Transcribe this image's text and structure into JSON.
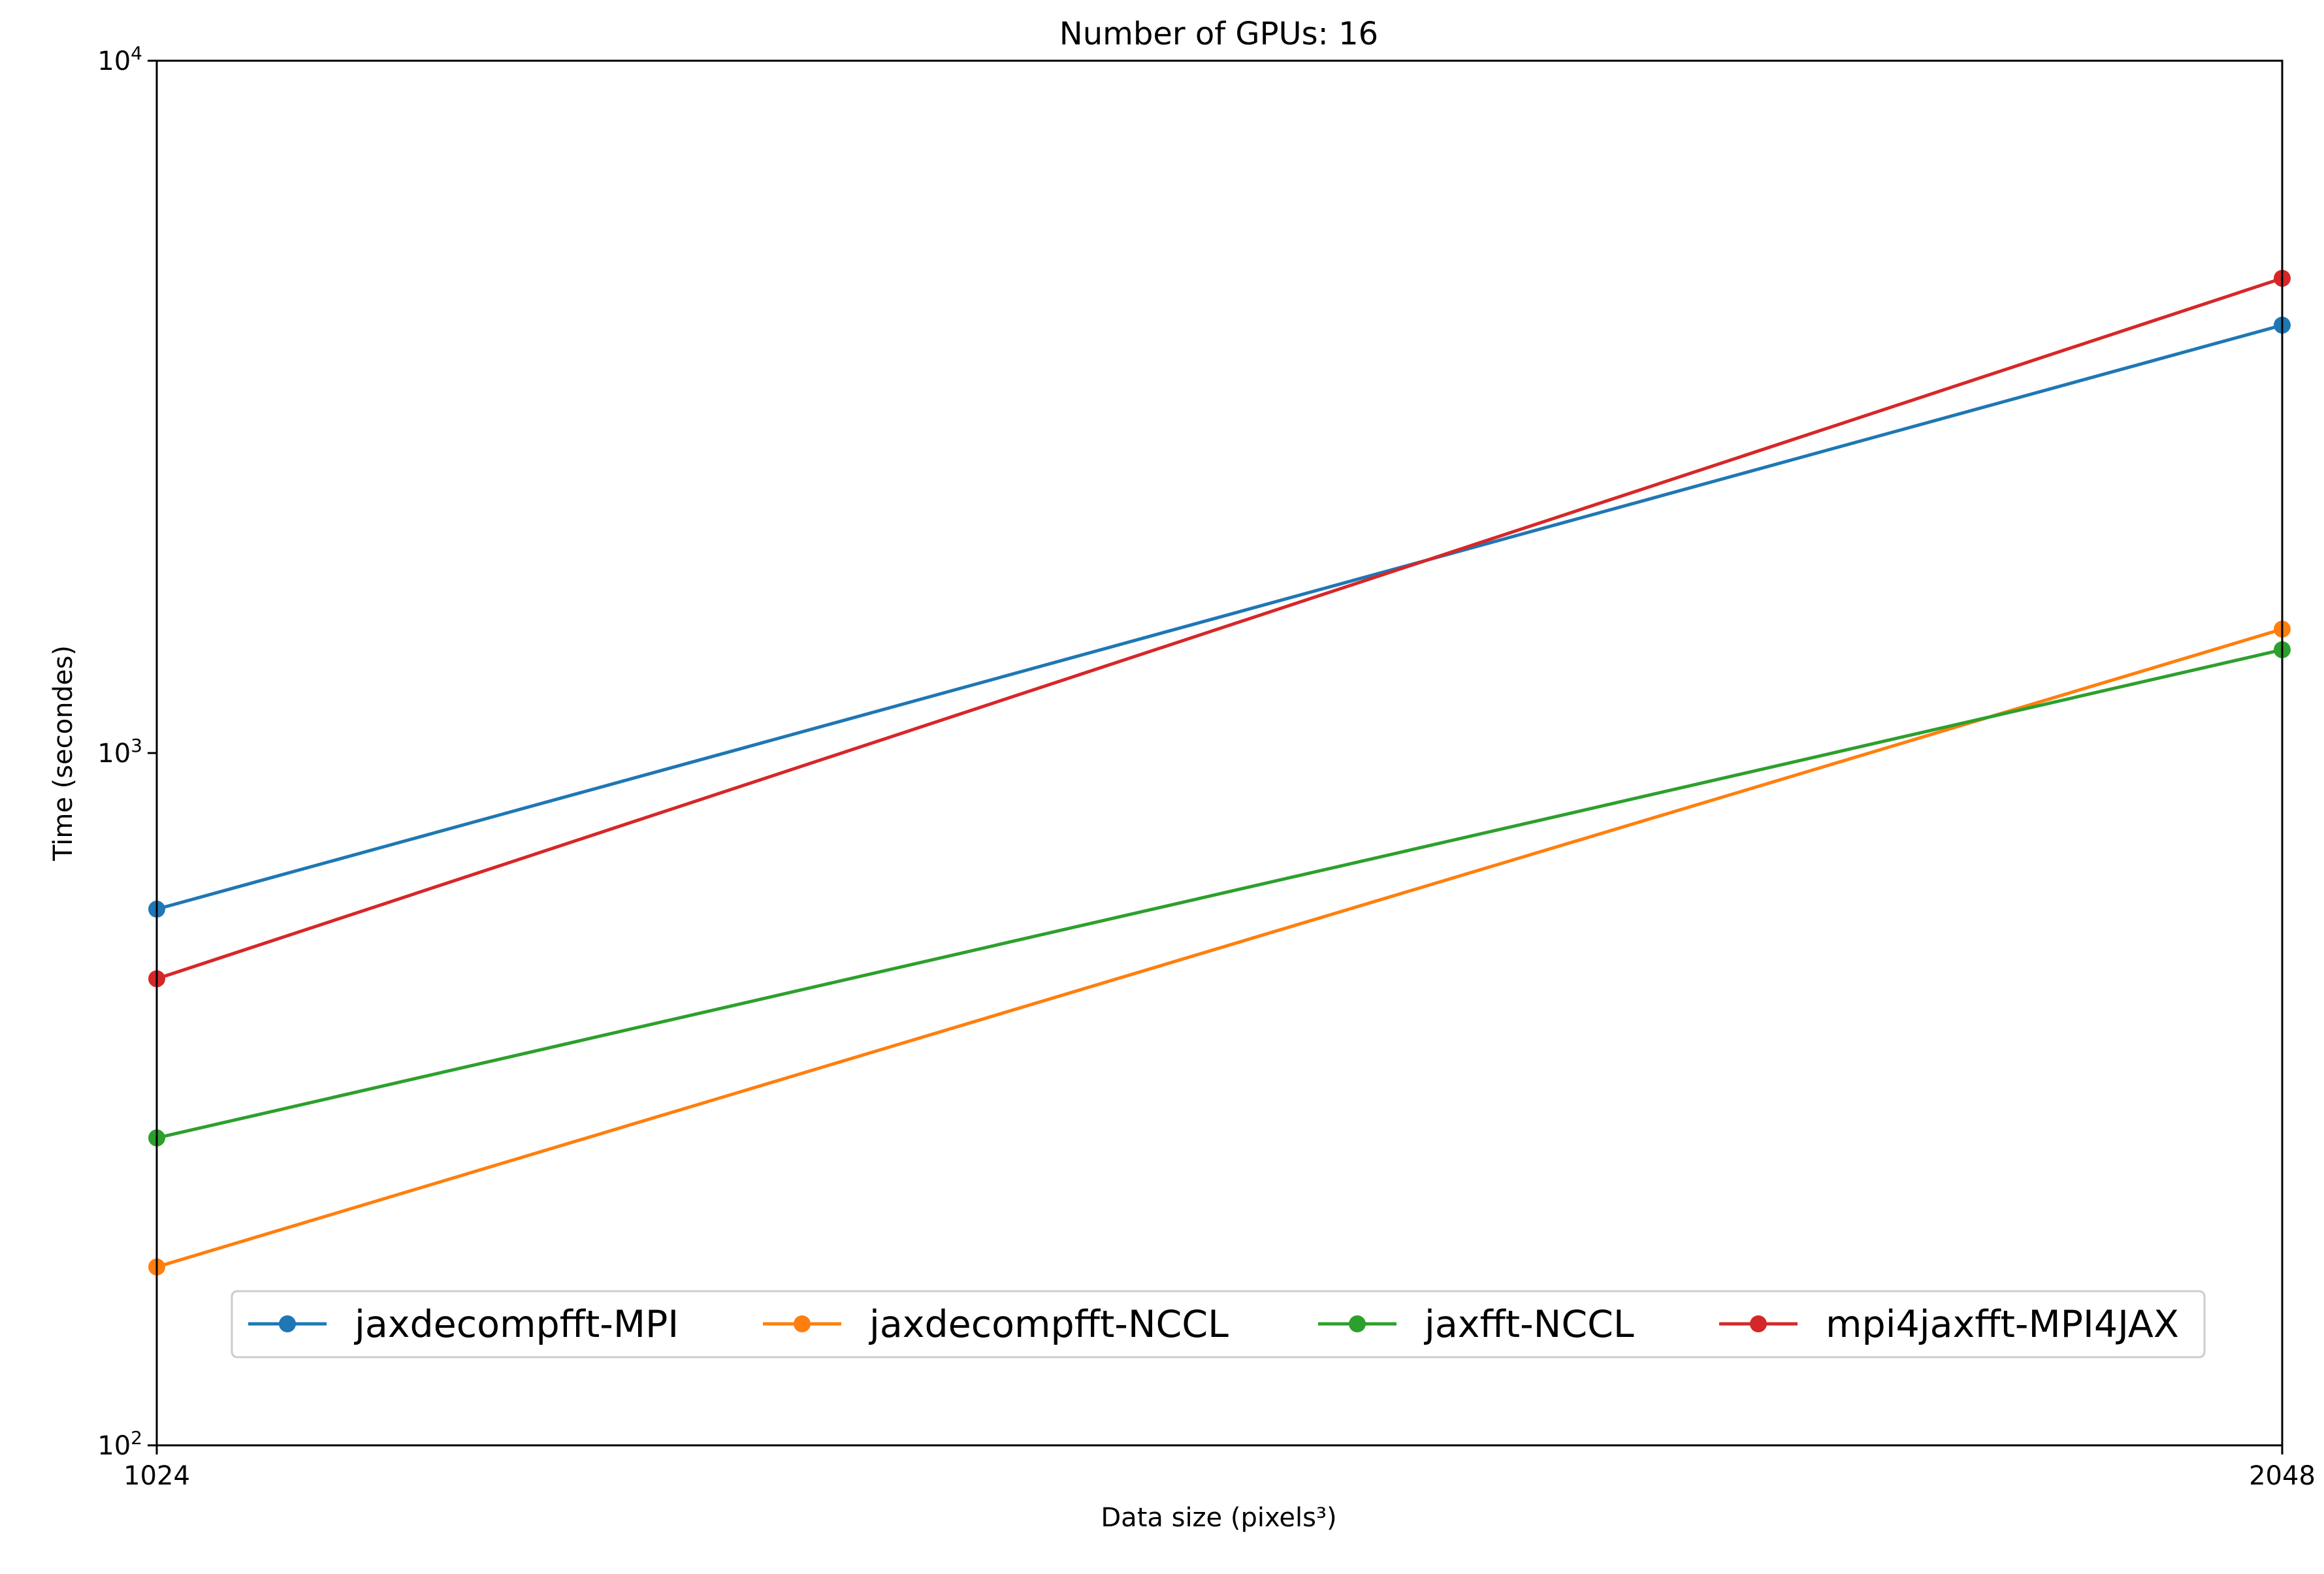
{
  "chart_data": {
    "type": "line",
    "title": "Number of GPUs: 16",
    "xlabel": "Data size (pixels³)",
    "ylabel": "Time (secondes)",
    "x": [
      1024,
      2048
    ],
    "x_tick_labels": [
      "1024",
      "2048"
    ],
    "xscale": "log",
    "yscale": "log",
    "ylim": [
      100,
      10000
    ],
    "y_ticks": [
      {
        "value": 100,
        "base": "10",
        "exp": "2"
      },
      {
        "value": 1000,
        "base": "10",
        "exp": "3"
      },
      {
        "value": 10000,
        "base": "10",
        "exp": "4"
      }
    ],
    "grid": false,
    "legend_position": "lower center",
    "series": [
      {
        "name": "jaxdecompfft-MPI",
        "color": "#1f77b4",
        "values": [
          595,
          4150
        ]
      },
      {
        "name": "jaxdecompfft-NCCL",
        "color": "#ff7f0e",
        "values": [
          181,
          1510
        ]
      },
      {
        "name": "jaxfft-NCCL",
        "color": "#2ca02c",
        "values": [
          278,
          1410
        ]
      },
      {
        "name": "mpi4jaxfft-MPI4JAX",
        "color": "#d62728",
        "values": [
          472,
          4850
        ]
      }
    ]
  }
}
